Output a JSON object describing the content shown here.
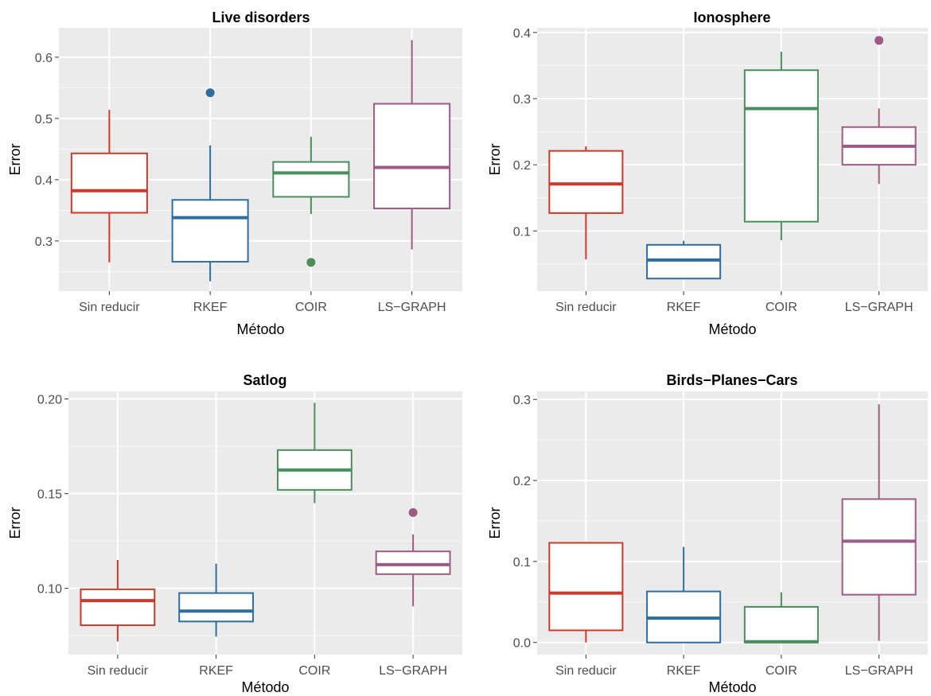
{
  "chart_data": [
    {
      "type": "boxplot",
      "title": "Live disorders",
      "xlabel": "Método",
      "ylabel": "Error",
      "categories": [
        "Sin reducir",
        "RKEF",
        "COIR",
        "LS−GRAPH"
      ],
      "ylim": [
        0.218,
        0.648
      ],
      "yticks": [
        0.3,
        0.4,
        0.5,
        0.6
      ],
      "ytick_labels": [
        "0.3",
        "0.4",
        "0.5",
        "0.6"
      ],
      "boxes": [
        {
          "lower": 0.265,
          "q1": 0.346,
          "median": 0.382,
          "q3": 0.443,
          "upper": 0.514,
          "outliers": []
        },
        {
          "lower": 0.234,
          "q1": 0.266,
          "median": 0.338,
          "q3": 0.367,
          "upper": 0.456,
          "outliers": [
            0.542
          ]
        },
        {
          "lower": 0.344,
          "q1": 0.372,
          "median": 0.411,
          "q3": 0.429,
          "upper": 0.47,
          "outliers": [
            0.265
          ]
        },
        {
          "lower": 0.286,
          "q1": 0.353,
          "median": 0.42,
          "q3": 0.524,
          "upper": 0.628,
          "outliers": []
        }
      ],
      "colors": [
        "#cc3a2b",
        "#2e6e9e",
        "#4a8d5e",
        "#9c5a85"
      ],
      "grid": true,
      "legend": "none"
    },
    {
      "type": "boxplot",
      "title": "Ionosphere",
      "xlabel": "Método",
      "ylabel": "Error",
      "categories": [
        "Sin reducir",
        "RKEF",
        "COIR",
        "LS−GRAPH"
      ],
      "ylim": [
        0.009,
        0.407
      ],
      "yticks": [
        0.1,
        0.2,
        0.3,
        0.4
      ],
      "ytick_labels": [
        "0.1",
        "0.2",
        "0.3",
        "0.4"
      ],
      "boxes": [
        {
          "lower": 0.057,
          "q1": 0.127,
          "median": 0.171,
          "q3": 0.221,
          "upper": 0.228,
          "outliers": []
        },
        {
          "lower": 0.028,
          "q1": 0.028,
          "median": 0.056,
          "q3": 0.079,
          "upper": 0.085,
          "outliers": []
        },
        {
          "lower": 0.086,
          "q1": 0.114,
          "median": 0.285,
          "q3": 0.343,
          "upper": 0.371,
          "outliers": []
        },
        {
          "lower": 0.171,
          "q1": 0.2,
          "median": 0.228,
          "q3": 0.257,
          "upper": 0.285,
          "outliers": [
            0.388
          ]
        }
      ],
      "colors": [
        "#cc3a2b",
        "#2e6e9e",
        "#4a8d5e",
        "#9c5a85"
      ],
      "grid": true,
      "legend": "none"
    },
    {
      "type": "boxplot",
      "title": "Satlog",
      "xlabel": "Método",
      "ylabel": "Error",
      "categories": [
        "Sin reducir",
        "RKEF",
        "COIR",
        "LS−GRAPH"
      ],
      "ylim": [
        0.065,
        0.204
      ],
      "yticks": [
        0.1,
        0.15,
        0.2
      ],
      "ytick_labels": [
        "0.10",
        "0.15",
        "0.20"
      ],
      "boxes": [
        {
          "lower": 0.072,
          "q1": 0.0805,
          "median": 0.0935,
          "q3": 0.0995,
          "upper": 0.115,
          "outliers": []
        },
        {
          "lower": 0.0745,
          "q1": 0.0825,
          "median": 0.088,
          "q3": 0.0975,
          "upper": 0.113,
          "outliers": []
        },
        {
          "lower": 0.145,
          "q1": 0.152,
          "median": 0.1625,
          "q3": 0.173,
          "upper": 0.198,
          "outliers": []
        },
        {
          "lower": 0.0905,
          "q1": 0.1075,
          "median": 0.1125,
          "q3": 0.1195,
          "upper": 0.1285,
          "outliers": [
            0.14
          ]
        }
      ],
      "colors": [
        "#cc3a2b",
        "#2e6e9e",
        "#4a8d5e",
        "#9c5a85"
      ],
      "grid": true,
      "legend": "none"
    },
    {
      "type": "boxplot",
      "title": "Birds−Planes−Cars",
      "xlabel": "Método",
      "ylabel": "Error",
      "categories": [
        "Sin reducir",
        "RKEF",
        "COIR",
        "LS−GRAPH"
      ],
      "ylim": [
        -0.015,
        0.31
      ],
      "yticks": [
        0.0,
        0.1,
        0.2,
        0.3
      ],
      "ytick_labels": [
        "0.0",
        "0.1",
        "0.2",
        "0.3"
      ],
      "boxes": [
        {
          "lower": 0.0,
          "q1": 0.015,
          "median": 0.061,
          "q3": 0.123,
          "upper": 0.124,
          "outliers": []
        },
        {
          "lower": 0.0,
          "q1": 0.0,
          "median": 0.03,
          "q3": 0.063,
          "upper": 0.118,
          "outliers": []
        },
        {
          "lower": 0.0,
          "q1": 0.0,
          "median": 0.001,
          "q3": 0.044,
          "upper": 0.062,
          "outliers": []
        },
        {
          "lower": 0.002,
          "q1": 0.059,
          "median": 0.125,
          "q3": 0.177,
          "upper": 0.294,
          "outliers": []
        }
      ],
      "colors": [
        "#cc3a2b",
        "#2e6e9e",
        "#4a8d5e",
        "#9c5a85"
      ],
      "grid": true,
      "legend": "none"
    }
  ]
}
